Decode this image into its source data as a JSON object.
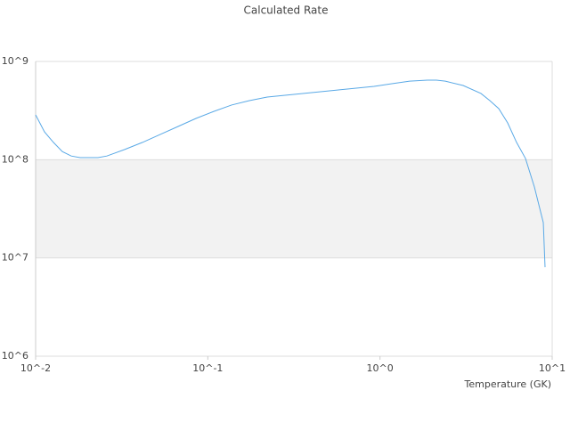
{
  "chart_data": {
    "type": "line",
    "title": "Calculated Rate",
    "x_label": "Temperature (GK)",
    "x": [
      0.01,
      0.01126,
      0.01269,
      0.01429,
      0.0161,
      0.01814,
      0.02043,
      0.02302,
      0.02593,
      0.0329,
      0.04175,
      0.05297,
      0.06722,
      0.08531,
      0.1083,
      0.1374,
      0.1743,
      0.2212,
      0.2807,
      0.3562,
      0.452,
      0.5736,
      0.7279,
      0.9237,
      1.172,
      1.487,
      1.887,
      2.126,
      2.395,
      3.04,
      3.857,
      4.345,
      4.895,
      5.513,
      6.211,
      6.997,
      7.882,
      8.879,
      9.09
    ],
    "series": [
      {
        "color": "#5aa9e6",
        "values": [
          286000000,
          192000000,
          150000000,
          121000000,
          109000000,
          105000000,
          105000000,
          105000000,
          109000000,
          127000000,
          150000000,
          181000000,
          218000000,
          263000000,
          310000000,
          360000000,
          399000000,
          434000000,
          452000000,
          472000000,
          492000000,
          513000000,
          535000000,
          557000000,
          593000000,
          630000000,
          645000000,
          645000000,
          630000000,
          569000000,
          472000000,
          399000000,
          331000000,
          237000000,
          150000000,
          103000000,
          52700000,
          22900000,
          8050000
        ]
      }
    ],
    "log_x": true,
    "log_y": true,
    "xlim": [
      0.01,
      10
    ],
    "ylim": [
      1000000,
      1000000000
    ],
    "xticks": [
      {
        "value": 0.01,
        "label": "10^-2"
      },
      {
        "value": 0.1,
        "label": "10^-1"
      },
      {
        "value": 1,
        "label": "10^0"
      },
      {
        "value": 10,
        "label": "10^1"
      }
    ],
    "yticks": [
      {
        "value": 1000000,
        "label": "10^6"
      },
      {
        "value": 10000000,
        "label": "10^7"
      },
      {
        "value": 100000000,
        "label": "10^8"
      },
      {
        "value": 1000000000,
        "label": "10^9"
      }
    ],
    "grid": true
  }
}
